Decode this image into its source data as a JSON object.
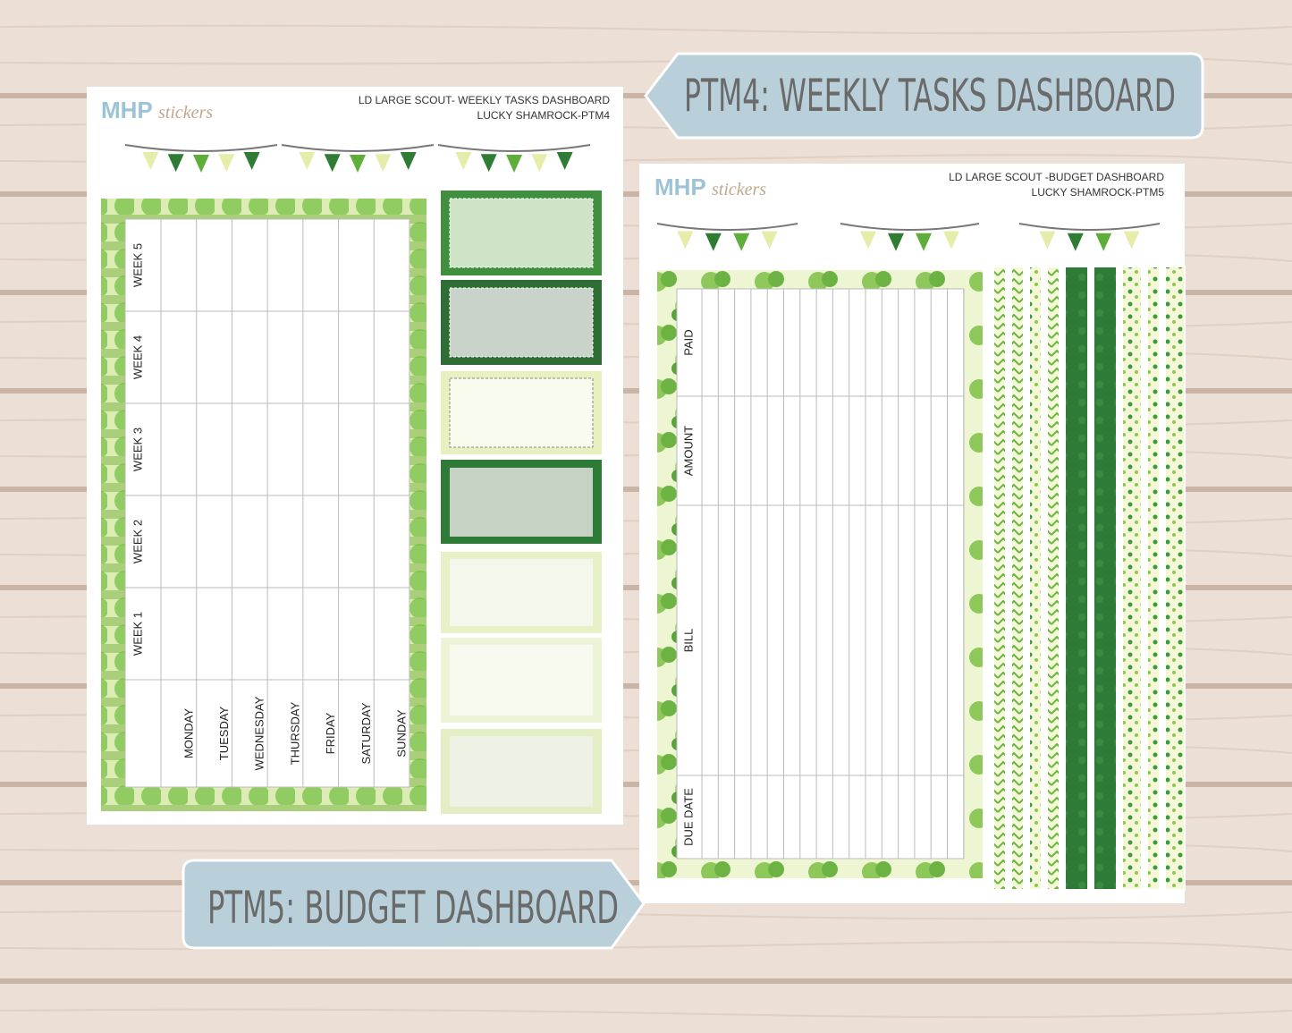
{
  "banners": [
    "PTM4: WEEKLY TASKS DASHBOARD",
    "PTM5: BUDGET DASHBOARD"
  ],
  "sheets": [
    {
      "logo": {
        "main": "MHP",
        "script": "stickers"
      },
      "header": [
        "LD LARGE SCOUT- WEEKLY TASKS DASHBOARD",
        "LUCKY SHAMROCK-PTM4"
      ],
      "row_labels": [
        "WEEK 5",
        "WEEK 4",
        "WEEK 3",
        "WEEK 2",
        "WEEK 1"
      ],
      "column_labels": [
        "MONDAY",
        "TUESDAY",
        "WEDNESDAY",
        "THURSDAY",
        "FRIDAY",
        "SATURDAY",
        "SUNDAY"
      ]
    },
    {
      "logo": {
        "main": "MHP",
        "script": "stickers"
      },
      "header": [
        "LD LARGE SCOUT -BUDGET  DASHBOARD",
        "LUCKY SHAMROCK-PTM5"
      ],
      "column_labels": [
        "PAID",
        "AMOUNT",
        "BILL",
        "DUE DATE"
      ]
    }
  ]
}
